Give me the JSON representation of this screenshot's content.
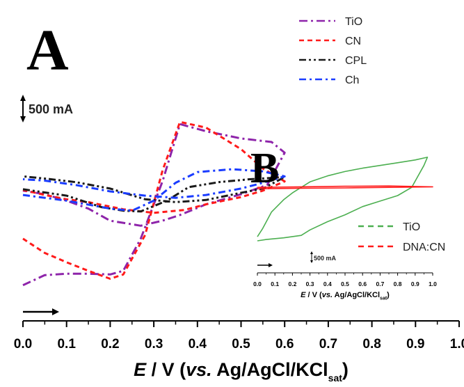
{
  "chart_data": [
    {
      "panel": "A",
      "type": "line",
      "xlabel_parts": [
        "E",
        " / V (",
        "vs.",
        " Ag/AgCl/KCl",
        "sat",
        ")"
      ],
      "x_ticks": [
        "0.0",
        "0.1",
        "0.2",
        "0.3",
        "0.4",
        "0.5",
        "0.6",
        "0.7",
        "0.8",
        "0.9",
        "1.0"
      ],
      "xlim": [
        0.0,
        1.0
      ],
      "ylim": [
        -1200,
        2300
      ],
      "scale_bar_label": "500 mA",
      "scale_bar_value": 500,
      "legend": {
        "placement": "top-right"
      },
      "series": [
        {
          "name": "TiO",
          "color": "#8e24aa",
          "dash": "12,5,3,5",
          "points": [
            [
              0.0,
              -1100
            ],
            [
              0.05,
              -960
            ],
            [
              0.1,
              -940
            ],
            [
              0.15,
              -940
            ],
            [
              0.2,
              -950
            ],
            [
              0.23,
              -900
            ],
            [
              0.27,
              -450
            ],
            [
              0.32,
              350
            ],
            [
              0.36,
              1150
            ],
            [
              0.42,
              1050
            ],
            [
              0.5,
              950
            ],
            [
              0.57,
              900
            ],
            [
              0.6,
              750
            ],
            [
              0.56,
              300
            ],
            [
              0.5,
              170
            ],
            [
              0.42,
              30
            ],
            [
              0.36,
              -120
            ],
            [
              0.32,
              -200
            ],
            [
              0.27,
              -270
            ],
            [
              0.2,
              -200
            ],
            [
              0.15,
              -30
            ],
            [
              0.1,
              80
            ],
            [
              0.05,
              170
            ],
            [
              0.0,
              220
            ]
          ]
        },
        {
          "name": "CN",
          "color": "#ff1a1a",
          "dash": "7,5",
          "points": [
            [
              0.0,
              -450
            ],
            [
              0.05,
              -650
            ],
            [
              0.1,
              -780
            ],
            [
              0.15,
              -900
            ],
            [
              0.2,
              -1010
            ],
            [
              0.23,
              -950
            ],
            [
              0.28,
              -400
            ],
            [
              0.32,
              500
            ],
            [
              0.36,
              1180
            ],
            [
              0.42,
              1100
            ],
            [
              0.5,
              800
            ],
            [
              0.55,
              530
            ],
            [
              0.6,
              350
            ],
            [
              0.55,
              220
            ],
            [
              0.5,
              130
            ],
            [
              0.42,
              30
            ],
            [
              0.37,
              -50
            ],
            [
              0.3,
              -90
            ],
            [
              0.23,
              -40
            ],
            [
              0.15,
              60
            ],
            [
              0.1,
              100
            ],
            [
              0.05,
              160
            ],
            [
              0.0,
              230
            ]
          ]
        },
        {
          "name": "CPL",
          "color": "#1a1a1a",
          "dash": "10,4,3,4,3,4",
          "points": [
            [
              0.0,
              240
            ],
            [
              0.1,
              150
            ],
            [
              0.18,
              -10
            ],
            [
              0.23,
              -60
            ],
            [
              0.27,
              -70
            ],
            [
              0.33,
              80
            ],
            [
              0.38,
              270
            ],
            [
              0.45,
              340
            ],
            [
              0.52,
              380
            ],
            [
              0.6,
              410
            ],
            [
              0.55,
              250
            ],
            [
              0.5,
              190
            ],
            [
              0.42,
              90
            ],
            [
              0.35,
              60
            ],
            [
              0.28,
              100
            ],
            [
              0.2,
              250
            ],
            [
              0.12,
              340
            ],
            [
              0.05,
              390
            ],
            [
              0.0,
              420
            ]
          ]
        },
        {
          "name": "Ch",
          "color": "#1a3cff",
          "dash": "10,5,3,5",
          "points": [
            [
              0.0,
              160
            ],
            [
              0.1,
              80
            ],
            [
              0.2,
              -30
            ],
            [
              0.25,
              -60
            ],
            [
              0.3,
              80
            ],
            [
              0.35,
              330
            ],
            [
              0.4,
              480
            ],
            [
              0.48,
              520
            ],
            [
              0.55,
              490
            ],
            [
              0.6,
              420
            ],
            [
              0.55,
              330
            ],
            [
              0.5,
              250
            ],
            [
              0.42,
              160
            ],
            [
              0.35,
              120
            ],
            [
              0.28,
              150
            ],
            [
              0.2,
              210
            ],
            [
              0.12,
              300
            ],
            [
              0.05,
              360
            ],
            [
              0.0,
              380
            ]
          ]
        }
      ]
    },
    {
      "panel": "B",
      "type": "line",
      "xlabel_parts": [
        "E",
        " / V (",
        "vs.",
        " Ag/AgCl/KCl",
        "sat",
        ")"
      ],
      "x_ticks": [
        "0.0",
        "0.1",
        "0.2",
        "0.3",
        "0.4",
        "0.5",
        "0.6",
        "0.7",
        "0.8",
        "0.9",
        "1.0"
      ],
      "xlim": [
        0.0,
        1.0
      ],
      "ylim": [
        -2000,
        1300
      ],
      "scale_bar_label": "500 mA",
      "scale_bar_value": 500,
      "legend": {
        "placement": "bottom-right"
      },
      "series": [
        {
          "name": "TiO",
          "color": "#4caf50",
          "dash": "",
          "points": [
            [
              0.0,
              -1950
            ],
            [
              0.05,
              -1900
            ],
            [
              0.15,
              -1840
            ],
            [
              0.25,
              -1750
            ],
            [
              0.3,
              -1550
            ],
            [
              0.4,
              -1250
            ],
            [
              0.5,
              -1000
            ],
            [
              0.6,
              -700
            ],
            [
              0.7,
              -500
            ],
            [
              0.8,
              -300
            ],
            [
              0.88,
              0
            ],
            [
              0.95,
              800
            ],
            [
              0.97,
              1100
            ],
            [
              0.9,
              1000
            ],
            [
              0.8,
              900
            ],
            [
              0.7,
              800
            ],
            [
              0.6,
              700
            ],
            [
              0.5,
              580
            ],
            [
              0.4,
              420
            ],
            [
              0.3,
              200
            ],
            [
              0.2,
              -200
            ],
            [
              0.15,
              -450
            ],
            [
              0.08,
              -900
            ],
            [
              0.03,
              -1500
            ],
            [
              0.0,
              -1800
            ]
          ]
        },
        {
          "name": "DNA:CN",
          "color": "#ff1a1a",
          "dash": "",
          "points": [
            [
              0.0,
              -50
            ],
            [
              0.25,
              -30
            ],
            [
              0.5,
              -20
            ],
            [
              0.75,
              0
            ],
            [
              1.0,
              20
            ],
            [
              0.75,
              50
            ],
            [
              0.5,
              40
            ],
            [
              0.25,
              20
            ],
            [
              0.0,
              0
            ]
          ]
        }
      ]
    }
  ]
}
